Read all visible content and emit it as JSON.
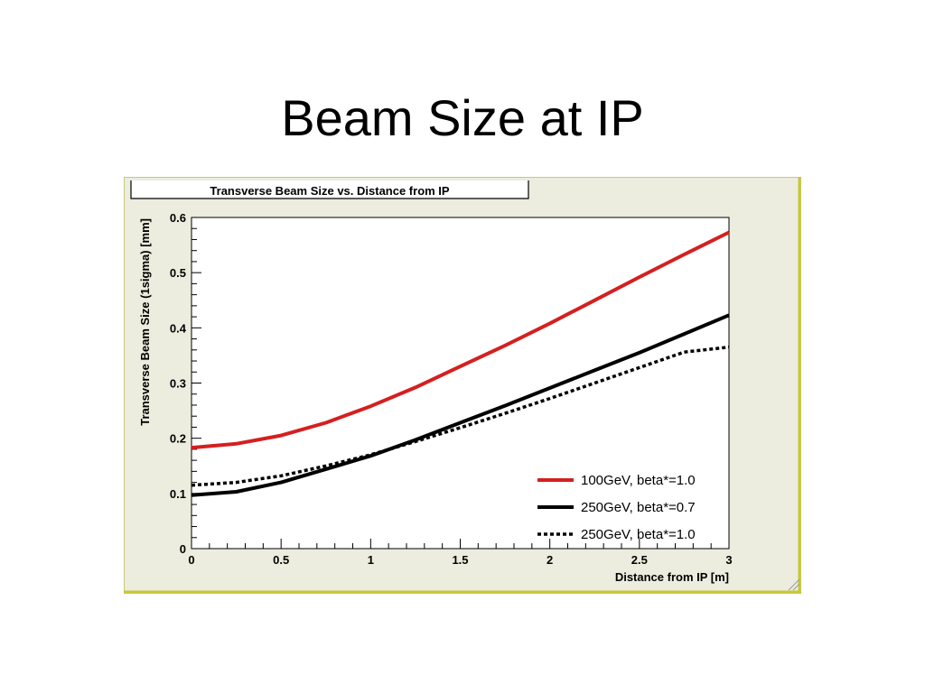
{
  "slide": {
    "title": "Beam Size at IP"
  },
  "chart_data": {
    "type": "line",
    "title": "Transverse Beam Size vs. Distance from IP",
    "xlabel": "Distance from IP [m]",
    "ylabel": "Transverse Beam Size (1sigma) [mm]",
    "xlim": [
      0,
      3
    ],
    "ylim": [
      0,
      0.6
    ],
    "x_ticks": [
      0,
      0.5,
      1,
      1.5,
      2,
      2.5,
      3
    ],
    "x_tick_labels": [
      "0",
      "0.5",
      "1",
      "1.5",
      "2",
      "2.5",
      "3"
    ],
    "y_ticks": [
      0,
      0.1,
      0.2,
      0.3,
      0.4,
      0.5,
      0.6
    ],
    "y_tick_labels": [
      "0",
      "0.1",
      "0.2",
      "0.3",
      "0.4",
      "0.5",
      "0.6"
    ],
    "grid": false,
    "legend_position": "bottom-right",
    "series": [
      {
        "name": "100GeV, beta*=1.0",
        "color": "#d42020",
        "style": "solid",
        "x": [
          0,
          0.25,
          0.5,
          0.75,
          1.0,
          1.25,
          1.5,
          1.75,
          2.0,
          2.25,
          2.5,
          2.75,
          3.0
        ],
        "y": [
          0.183,
          0.19,
          0.205,
          0.228,
          0.258,
          0.292,
          0.33,
          0.368,
          0.408,
          0.45,
          0.492,
          0.533,
          0.573
        ]
      },
      {
        "name": "250GeV, beta*=0.7",
        "color": "#000000",
        "style": "solid",
        "x": [
          0,
          0.25,
          0.5,
          0.75,
          1.0,
          1.25,
          1.5,
          1.75,
          2.0,
          2.25,
          2.5,
          2.75,
          3.0
        ],
        "y": [
          0.097,
          0.103,
          0.12,
          0.144,
          0.168,
          0.197,
          0.228,
          0.259,
          0.291,
          0.323,
          0.355,
          0.389,
          0.423
        ]
      },
      {
        "name": "250GeV, beta*=1.0",
        "color": "#000000",
        "style": "dotted",
        "x": [
          0,
          0.25,
          0.5,
          0.75,
          1.0,
          1.25,
          1.5,
          1.75,
          2.0,
          2.25,
          2.5,
          2.75,
          3.0
        ],
        "y": [
          0.115,
          0.12,
          0.132,
          0.15,
          0.17,
          0.194,
          0.219,
          0.245,
          0.272,
          0.3,
          0.328,
          0.356,
          0.365
        ]
      }
    ]
  }
}
